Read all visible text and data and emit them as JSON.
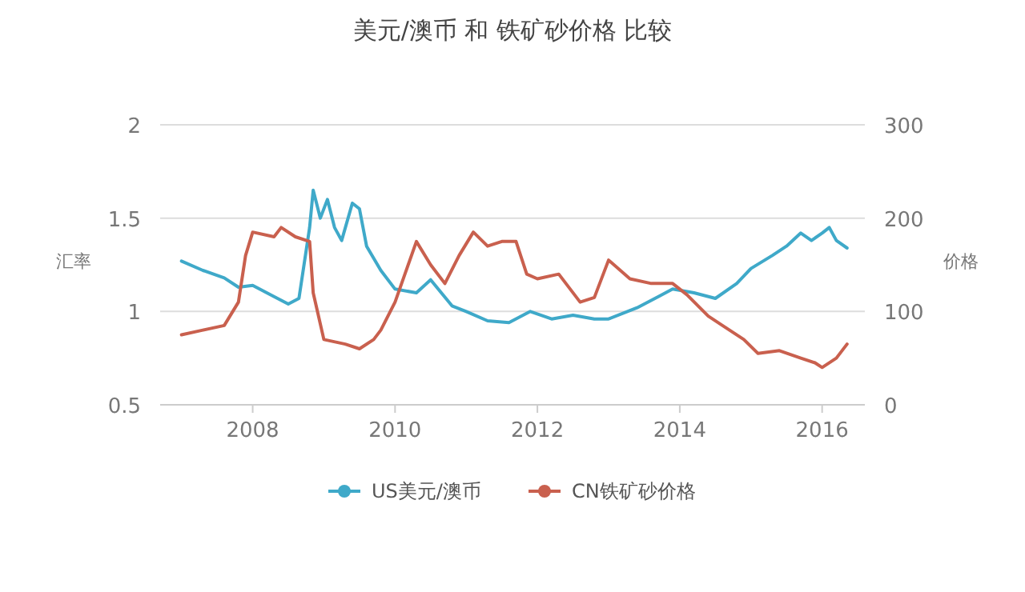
{
  "chart_data": {
    "type": "line",
    "title": "美元/澳币 和 铁矿砂价格 比较",
    "ylabel": "汇率",
    "y2label": "价格",
    "legend": "bottom",
    "grid": "y",
    "xlim": [
      2006.7,
      2016.6
    ],
    "xticks": [
      2008,
      2010,
      2012,
      2014,
      2016
    ],
    "ylim": [
      0.5,
      2
    ],
    "yticks": [
      0.5,
      1,
      1.5,
      2
    ],
    "y2lim": [
      0,
      300
    ],
    "y2ticks": [
      0,
      100,
      200,
      300
    ],
    "series": [
      {
        "name": "US美元/澳币",
        "color": "#3fa9c9",
        "x": [
          2007.0,
          2007.3,
          2007.6,
          2007.8,
          2008.0,
          2008.3,
          2008.5,
          2008.65,
          2008.8,
          2008.85,
          2008.95,
          2009.05,
          2009.15,
          2009.25,
          2009.4,
          2009.5,
          2009.6,
          2009.8,
          2010.0,
          2010.3,
          2010.5,
          2010.8,
          2011.0,
          2011.3,
          2011.6,
          2011.9,
          2012.2,
          2012.5,
          2012.8,
          2013.0,
          2013.4,
          2013.7,
          2013.9,
          2014.2,
          2014.5,
          2014.8,
          2015.0,
          2015.3,
          2015.5,
          2015.7,
          2015.85,
          2016.0,
          2016.1,
          2016.2,
          2016.35
        ],
        "values": [
          1.27,
          1.22,
          1.18,
          1.13,
          1.14,
          1.08,
          1.04,
          1.07,
          1.45,
          1.65,
          1.5,
          1.6,
          1.45,
          1.38,
          1.58,
          1.55,
          1.35,
          1.22,
          1.12,
          1.1,
          1.17,
          1.03,
          1.0,
          0.95,
          0.94,
          1.0,
          0.96,
          0.98,
          0.96,
          0.96,
          1.02,
          1.08,
          1.12,
          1.1,
          1.07,
          1.15,
          1.23,
          1.3,
          1.35,
          1.42,
          1.38,
          1.42,
          1.45,
          1.38,
          1.34
        ]
      },
      {
        "name": "CN铁矿砂价格",
        "color": "#c9604e",
        "axis": "y2",
        "x": [
          2007.0,
          2007.3,
          2007.6,
          2007.8,
          2007.9,
          2008.0,
          2008.3,
          2008.4,
          2008.6,
          2008.8,
          2008.85,
          2009.0,
          2009.3,
          2009.5,
          2009.7,
          2009.8,
          2010.0,
          2010.3,
          2010.5,
          2010.7,
          2010.9,
          2011.1,
          2011.3,
          2011.5,
          2011.7,
          2011.85,
          2012.0,
          2012.3,
          2012.6,
          2012.8,
          2013.0,
          2013.3,
          2013.6,
          2013.9,
          2014.1,
          2014.4,
          2014.6,
          2014.9,
          2015.1,
          2015.4,
          2015.7,
          2015.9,
          2016.0,
          2016.2,
          2016.35
        ],
        "values": [
          75,
          80,
          85,
          110,
          160,
          185,
          180,
          190,
          180,
          175,
          120,
          70,
          65,
          60,
          70,
          80,
          110,
          175,
          150,
          130,
          160,
          185,
          170,
          175,
          175,
          140,
          135,
          140,
          110,
          115,
          155,
          135,
          130,
          130,
          118,
          95,
          85,
          70,
          55,
          58,
          50,
          45,
          40,
          50,
          65
        ]
      }
    ]
  }
}
